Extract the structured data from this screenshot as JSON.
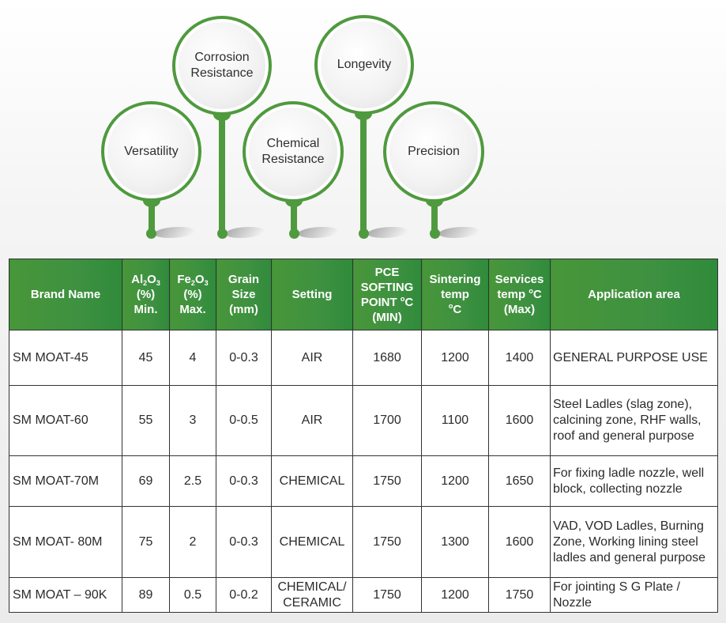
{
  "features": [
    {
      "label": "Versatility"
    },
    {
      "label": "Corrosion\nResistance"
    },
    {
      "label": "Chemical\nResistance"
    },
    {
      "label": "Longevity"
    },
    {
      "label": "Precision"
    }
  ],
  "colors": {
    "accent": "#4f9a3e",
    "header_bg": "#3e9140",
    "header_text": "#ffffff"
  },
  "table": {
    "headers": {
      "brand": "Brand Name",
      "al_pre": "Al",
      "al_sub1": "2",
      "al_mid": "O",
      "al_sub2": "3",
      "al_rest1": "(%)",
      "al_rest2": "Min.",
      "fe_pre": "Fe",
      "fe_sub1": "2",
      "fe_mid": "O",
      "fe_sub2": "3",
      "fe_rest1": "(%)",
      "fe_rest2": "Max.",
      "grain1": "Grain",
      "grain2": "Size",
      "grain3": "(mm)",
      "setting": "Setting",
      "pce1": "PCE",
      "pce2": "SOFTING",
      "pce3a": "POINT ",
      "pce3b": "o",
      "pce3c": "C",
      "pce4": "(MIN)",
      "sint1": "Sintering",
      "sint2": "temp",
      "sint3a": "o",
      "sint3b": "C",
      "serv1": "Services",
      "serv2a": "temp ",
      "serv2b": "o",
      "serv2c": "C",
      "serv3": "(Max)",
      "app": "Application area"
    },
    "rows": [
      {
        "brand": "SM MOAT-45",
        "al": "45",
        "fe": "4",
        "grain": "0-0.3",
        "setting": "AIR",
        "pce": "1680",
        "sintering": "1200",
        "services": "1400",
        "app": "GENERAL PURPOSE USE"
      },
      {
        "brand": "SM MOAT-60",
        "al": "55",
        "fe": "3",
        "grain": "0-0.5",
        "setting": "AIR",
        "pce": "1700",
        "sintering": "1100",
        "services": "1600",
        "app": "Steel Ladles (slag zone), calcining zone, RHF walls, roof and general purpose"
      },
      {
        "brand": "SM MOAT-70M",
        "al": "69",
        "fe": "2.5",
        "grain": "0-0.3",
        "setting": "CHEMICAL",
        "pce": "1750",
        "sintering": "1200",
        "services": "1650",
        "app": "For fixing ladle nozzle, well block, collecting nozzle"
      },
      {
        "brand": "SM MOAT- 80M",
        "al": "75",
        "fe": "2",
        "grain": "0-0.3",
        "setting": "CHEMICAL",
        "pce": "1750",
        "sintering": "1300",
        "services": "1600",
        "app": "VAD, VOD Ladles, Burning Zone, Working lining steel ladles and general purpose"
      },
      {
        "brand": "SM MOAT – 90K",
        "al": "89",
        "fe": "0.5",
        "grain": "0-0.2",
        "setting": "CHEMICAL/ CERAMIC",
        "pce": "1750",
        "sintering": "1200",
        "services": "1750",
        "app": "For jointing S G Plate / Nozzle"
      }
    ]
  }
}
